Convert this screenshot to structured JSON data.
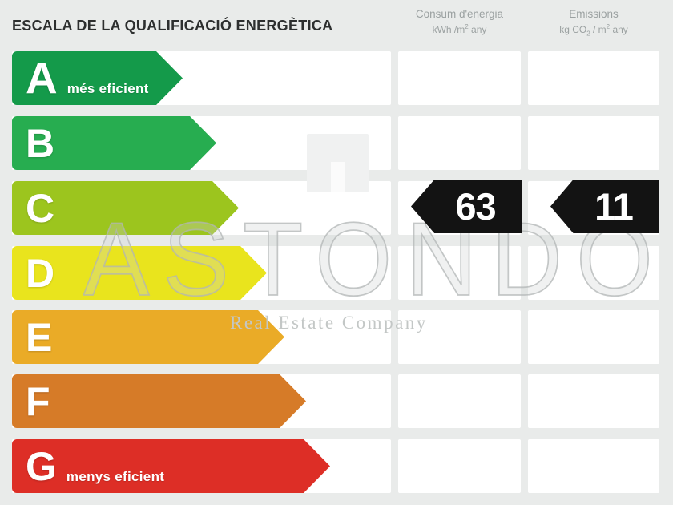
{
  "title": "ESCALA DE LA QUALIFICACIÓ ENERGÈTICA",
  "columns": {
    "consum": {
      "name": "Consum d'energia",
      "unit_pre": "kWh /m",
      "unit_sup": "2",
      "unit_post": " any"
    },
    "emissions": {
      "name": "Emissions",
      "unit_pre": "kg CO",
      "unit_sub": "2",
      "unit_mid": " / m",
      "unit_sup": "2",
      "unit_post": " any"
    }
  },
  "scale": {
    "rows": [
      {
        "letter": "A",
        "label": "més eficient",
        "color": "#149a4a"
      },
      {
        "letter": "B",
        "label": "",
        "color": "#27ad50"
      },
      {
        "letter": "C",
        "label": "",
        "color": "#9cc51e"
      },
      {
        "letter": "D",
        "label": "",
        "color": "#e9e41d"
      },
      {
        "letter": "E",
        "label": "",
        "color": "#eaab27"
      },
      {
        "letter": "F",
        "label": "",
        "color": "#d67b28"
      },
      {
        "letter": "G",
        "label": "menys eficient",
        "color": "#dd2e26"
      }
    ]
  },
  "rating": {
    "letter": "C",
    "consum_value": "63",
    "emissions_value": "11",
    "arrow_color": "#131313"
  },
  "watermark": {
    "name": "ASTONDO",
    "tagline": "Real Estate Company"
  }
}
